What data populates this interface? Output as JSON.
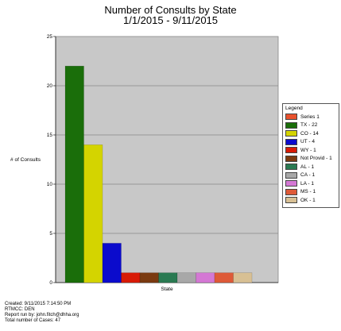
{
  "chart_data": {
    "type": "bar",
    "title": "Number of Consults by State",
    "subtitle": "1/1/2015 - 9/11/2015",
    "xlabel": "State",
    "ylabel": "# of Consults",
    "ylim": [
      0,
      25
    ],
    "yticks": [
      0,
      5,
      10,
      15,
      20,
      25
    ],
    "grid": true,
    "legend_title": "Legend",
    "legend_position": "right",
    "series": [
      {
        "name": "Series 1",
        "value": null,
        "color": "#e8512d"
      },
      {
        "name": "TX - 22",
        "value": 22,
        "color": "#1a6e0a"
      },
      {
        "name": "CO - 14",
        "value": 14,
        "color": "#d4d400"
      },
      {
        "name": "UT - 4",
        "value": 4,
        "color": "#0b0bcc"
      },
      {
        "name": "WY - 1",
        "value": 1,
        "color": "#d81a06"
      },
      {
        "name": "Not Provid - 1",
        "value": 1,
        "color": "#7a3a10"
      },
      {
        "name": "AL - 1",
        "value": 1,
        "color": "#2a7a52"
      },
      {
        "name": "CA - 1",
        "value": 1,
        "color": "#a8a8a8"
      },
      {
        "name": "LA - 1",
        "value": 1,
        "color": "#d478d4"
      },
      {
        "name": "MS - 1",
        "value": 1,
        "color": "#de5a38"
      },
      {
        "name": "OK - 1",
        "value": 1,
        "color": "#d8c094"
      }
    ]
  },
  "footer": {
    "created": "Created: 9/11/2015 7:14:50 PM",
    "rtmcc": "RTMCC: DEN",
    "run_by": "Report run by: john.fitch@dhha.org",
    "total": "Total number of Cases: 47"
  }
}
